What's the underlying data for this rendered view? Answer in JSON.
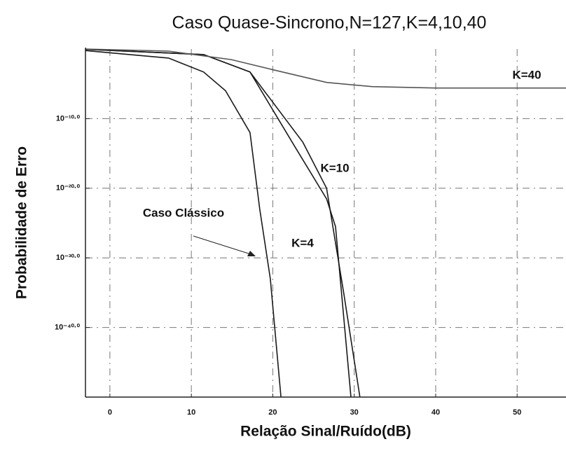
{
  "chart_data": {
    "type": "line",
    "title": "Caso Quase-Sincrono,N=127,K=4,10,40",
    "x_label": "Relação Sinal/Ruído(dB)",
    "y_label": "Probabilidade de Erro",
    "annotations": [
      "K=40",
      "K=10",
      "K=4",
      "Caso Clássico"
    ],
    "log_y": true,
    "grid": true,
    "xlim": [
      -3,
      56
    ],
    "ylim": [
      1e-50,
      1
    ],
    "xticks": [
      0,
      10,
      20,
      30,
      40,
      50
    ],
    "yticks": [
      {
        "value": 1e-10,
        "label": "10⁻¹⁰·⁰"
      },
      {
        "value": 1e-20,
        "label": "10⁻²⁰·⁰"
      },
      {
        "value": 1e-30,
        "label": "10⁻³⁰·⁰"
      },
      {
        "value": 1e-40,
        "label": "10⁻⁴⁰·⁰"
      }
    ],
    "series": [
      {
        "name": "Caso Clássico",
        "color": "#1a1a1a",
        "x": [
          -3,
          7.2,
          11.5,
          14.2,
          17.2,
          18.4,
          19.7,
          21
        ],
        "values": [
          0.6,
          0.05,
          0.0005,
          1e-06,
          1e-12,
          1e-23,
          1e-33,
          1e-50
        ]
      },
      {
        "name": "K=4",
        "color": "#1a1a1a",
        "x": [
          -3,
          11.5,
          17.2,
          22.7,
          26.6,
          27.7,
          29.6
        ],
        "values": [
          0.9,
          0.16,
          0.0005,
          1e-14,
          3e-22,
          3e-26,
          1e-50
        ]
      },
      {
        "name": "K=10",
        "color": "#1a1a1a",
        "x": [
          -3,
          11.5,
          17.2,
          23.7,
          26.6,
          28.7,
          30.7
        ],
        "values": [
          0.9,
          0.16,
          0.0005,
          4e-14,
          1e-20,
          1e-35,
          1e-50
        ]
      },
      {
        "name": "K=40",
        "color": "#555555",
        "x": [
          -3,
          7.2,
          14.9,
          20.1,
          26.6,
          32.2,
          40,
          56
        ],
        "values": [
          1,
          0.5,
          0.03,
          0.001,
          1.6e-05,
          4e-06,
          2.5e-06,
          2.5e-06
        ]
      }
    ]
  }
}
